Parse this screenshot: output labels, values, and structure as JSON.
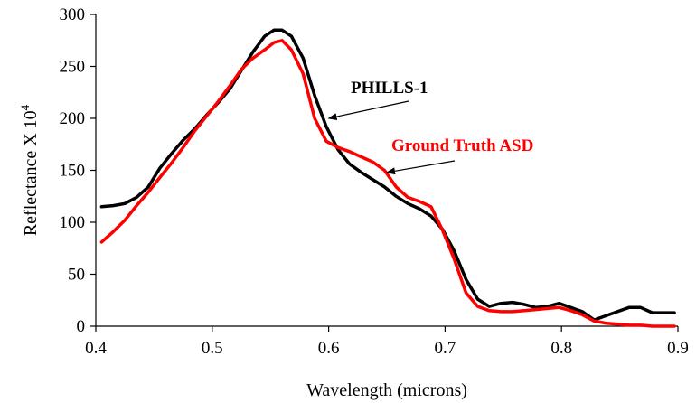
{
  "chart_data": {
    "type": "line",
    "xlabel": "Wavelength (microns)",
    "ylabel": "Reflectance X 10",
    "ylabel_superscript": "4",
    "xlim": [
      0.4,
      0.9
    ],
    "ylim": [
      0,
      300
    ],
    "x_ticks": [
      "0.4",
      "0.5",
      "0.6",
      "0.7",
      "0.8",
      "0.9"
    ],
    "y_ticks": [
      "0",
      "50",
      "100",
      "150",
      "200",
      "250",
      "300"
    ],
    "grid": false,
    "series": [
      {
        "name": "PHILLS-1",
        "color": "#000000",
        "points": [
          [
            0.405,
            115
          ],
          [
            0.415,
            116
          ],
          [
            0.425,
            118
          ],
          [
            0.435,
            124
          ],
          [
            0.445,
            134
          ],
          [
            0.455,
            152
          ],
          [
            0.465,
            166
          ],
          [
            0.475,
            179
          ],
          [
            0.485,
            190
          ],
          [
            0.495,
            203
          ],
          [
            0.505,
            215
          ],
          [
            0.515,
            228
          ],
          [
            0.525,
            246
          ],
          [
            0.535,
            264
          ],
          [
            0.545,
            279
          ],
          [
            0.553,
            285
          ],
          [
            0.56,
            285
          ],
          [
            0.568,
            279
          ],
          [
            0.578,
            258
          ],
          [
            0.588,
            222
          ],
          [
            0.598,
            192
          ],
          [
            0.608,
            170
          ],
          [
            0.618,
            156
          ],
          [
            0.628,
            148
          ],
          [
            0.638,
            141
          ],
          [
            0.648,
            134
          ],
          [
            0.658,
            125
          ],
          [
            0.668,
            118
          ],
          [
            0.678,
            113
          ],
          [
            0.688,
            106
          ],
          [
            0.698,
            93
          ],
          [
            0.708,
            72
          ],
          [
            0.718,
            45
          ],
          [
            0.728,
            26
          ],
          [
            0.738,
            19
          ],
          [
            0.748,
            22
          ],
          [
            0.758,
            23
          ],
          [
            0.768,
            21
          ],
          [
            0.778,
            18
          ],
          [
            0.788,
            19
          ],
          [
            0.798,
            22
          ],
          [
            0.808,
            18
          ],
          [
            0.818,
            14
          ],
          [
            0.828,
            6
          ],
          [
            0.838,
            10
          ],
          [
            0.848,
            14
          ],
          [
            0.858,
            18
          ],
          [
            0.868,
            18
          ],
          [
            0.878,
            13
          ],
          [
            0.888,
            13
          ],
          [
            0.897,
            13
          ]
        ]
      },
      {
        "name": "Ground Truth ASD",
        "color": "#ff0000",
        "points": [
          [
            0.405,
            81
          ],
          [
            0.415,
            91
          ],
          [
            0.425,
            102
          ],
          [
            0.435,
            116
          ],
          [
            0.445,
            129
          ],
          [
            0.455,
            143
          ],
          [
            0.465,
            157
          ],
          [
            0.475,
            172
          ],
          [
            0.485,
            188
          ],
          [
            0.495,
            202
          ],
          [
            0.505,
            216
          ],
          [
            0.515,
            231
          ],
          [
            0.525,
            247
          ],
          [
            0.535,
            258
          ],
          [
            0.545,
            266
          ],
          [
            0.553,
            273
          ],
          [
            0.56,
            275
          ],
          [
            0.568,
            266
          ],
          [
            0.578,
            243
          ],
          [
            0.588,
            200
          ],
          [
            0.598,
            178
          ],
          [
            0.608,
            172
          ],
          [
            0.618,
            168
          ],
          [
            0.628,
            163
          ],
          [
            0.638,
            158
          ],
          [
            0.648,
            150
          ],
          [
            0.658,
            134
          ],
          [
            0.668,
            124
          ],
          [
            0.678,
            120
          ],
          [
            0.688,
            115
          ],
          [
            0.698,
            92
          ],
          [
            0.708,
            64
          ],
          [
            0.718,
            32
          ],
          [
            0.728,
            19
          ],
          [
            0.738,
            15
          ],
          [
            0.748,
            14
          ],
          [
            0.758,
            14
          ],
          [
            0.768,
            15
          ],
          [
            0.778,
            16
          ],
          [
            0.788,
            17
          ],
          [
            0.798,
            18
          ],
          [
            0.808,
            15
          ],
          [
            0.818,
            11
          ],
          [
            0.828,
            5
          ],
          [
            0.838,
            3
          ],
          [
            0.848,
            2
          ],
          [
            0.858,
            1
          ],
          [
            0.868,
            1
          ],
          [
            0.878,
            0
          ],
          [
            0.888,
            0
          ],
          [
            0.897,
            0
          ]
        ]
      }
    ],
    "annotations": [
      {
        "text": "PHILLS-1",
        "color": "#000000",
        "arrow_to": [
          0.6,
          200
        ]
      },
      {
        "text": "Ground Truth ASD",
        "color": "#ff0000",
        "arrow_to": [
          0.65,
          148
        ]
      }
    ]
  }
}
